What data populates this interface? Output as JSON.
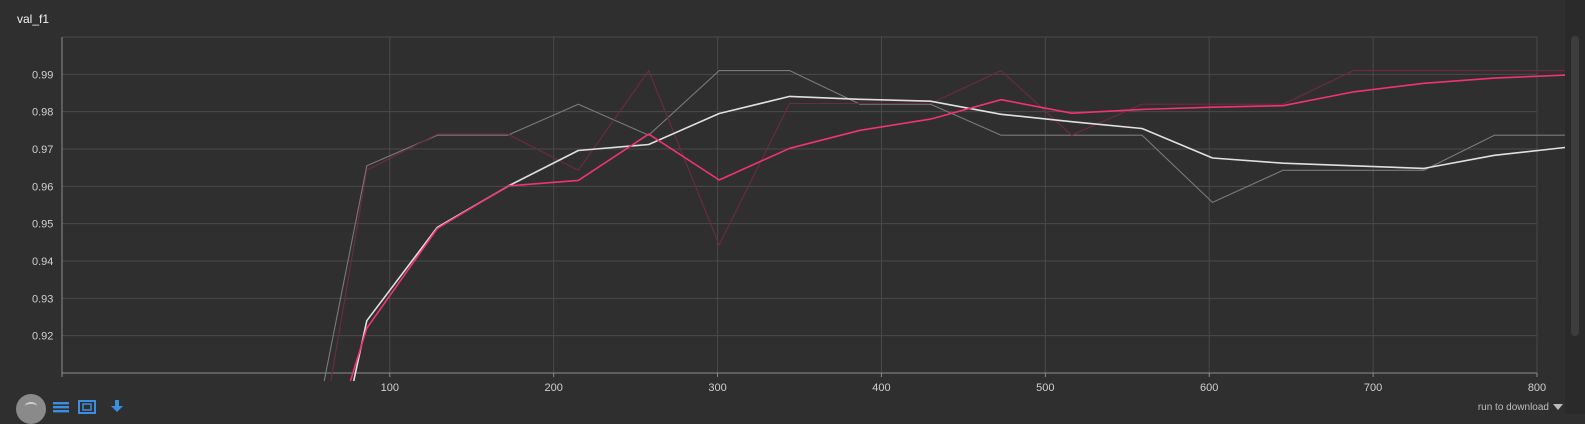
{
  "card": {
    "title": "val_f1"
  },
  "chart_data": {
    "type": "line",
    "title": "val_f1",
    "xlabel": "",
    "ylabel": "",
    "xlim": [
      -100,
      800
    ],
    "ylim": [
      0.91,
      1.0
    ],
    "x_ticks": [
      100,
      200,
      300,
      400,
      500,
      600,
      700,
      800
    ],
    "y_ticks": [
      0.92,
      0.93,
      0.94,
      0.95,
      0.96,
      0.97,
      0.98,
      0.99
    ],
    "grid": true,
    "series": [
      {
        "kind": "raw",
        "color": "#7a7a7a",
        "x": [
          60,
          86,
          129,
          172,
          215,
          258,
          301,
          344,
          387,
          430,
          473,
          516,
          559,
          602,
          645,
          688,
          731,
          774,
          817,
          860
        ],
        "y": [
          0.9,
          0.9655,
          0.9737,
          0.9737,
          0.982,
          0.9737,
          0.991,
          0.991,
          0.982,
          0.982,
          0.9737,
          0.9737,
          0.9737,
          0.9557,
          0.9643,
          0.9643,
          0.9643,
          0.9737,
          0.9737,
          0.9737
        ]
      },
      {
        "kind": "raw",
        "color": "#6e2a45",
        "x": [
          64,
          86,
          129,
          172,
          215,
          258,
          301,
          344,
          387,
          430,
          473,
          516,
          559,
          602,
          645,
          688,
          731,
          774,
          817,
          860
        ],
        "y": [
          0.9,
          0.9643,
          0.974,
          0.974,
          0.9643,
          0.991,
          0.9443,
          0.9822,
          0.9822,
          0.9822,
          0.991,
          0.9737,
          0.982,
          0.982,
          0.982,
          0.991,
          0.991,
          0.991,
          0.991,
          0.9826
        ]
      },
      {
        "kind": "smoothed",
        "color": "#e0e0e0",
        "x": [
          78,
          86,
          129,
          172,
          215,
          258,
          301,
          344,
          387,
          430,
          473,
          516,
          559,
          602,
          645,
          688,
          731,
          774,
          817,
          860
        ],
        "y": [
          0.9,
          0.924,
          0.949,
          0.96,
          0.9696,
          0.9712,
          0.9795,
          0.9841,
          0.9833,
          0.9828,
          0.9793,
          0.9773,
          0.9755,
          0.9676,
          0.9662,
          0.9655,
          0.9648,
          0.9683,
          0.9704,
          0.9716
        ]
      },
      {
        "kind": "smoothed",
        "color": "#f0346f",
        "x": [
          76,
          86,
          129,
          172,
          215,
          258,
          301,
          344,
          387,
          430,
          473,
          516,
          559,
          602,
          645,
          688,
          731,
          774,
          817,
          860
        ],
        "y": [
          0.9,
          0.922,
          0.9487,
          0.9601,
          0.9616,
          0.974,
          0.9617,
          0.9702,
          0.975,
          0.978,
          0.9832,
          0.9796,
          0.9806,
          0.9812,
          0.9816,
          0.9853,
          0.9876,
          0.989,
          0.9898,
          0.9869
        ]
      }
    ]
  },
  "toolbar": {
    "icons": [
      "avatar-icon",
      "list-icon",
      "fit-domain-icon",
      "download-icon"
    ],
    "download_label": "run to download"
  },
  "colors": {
    "background": "#2f2f2f",
    "grid": "#4a4a4a",
    "axis": "#8c8c8c",
    "accent_pink": "#f0346f",
    "accent_blue": "#3b8fe0"
  }
}
